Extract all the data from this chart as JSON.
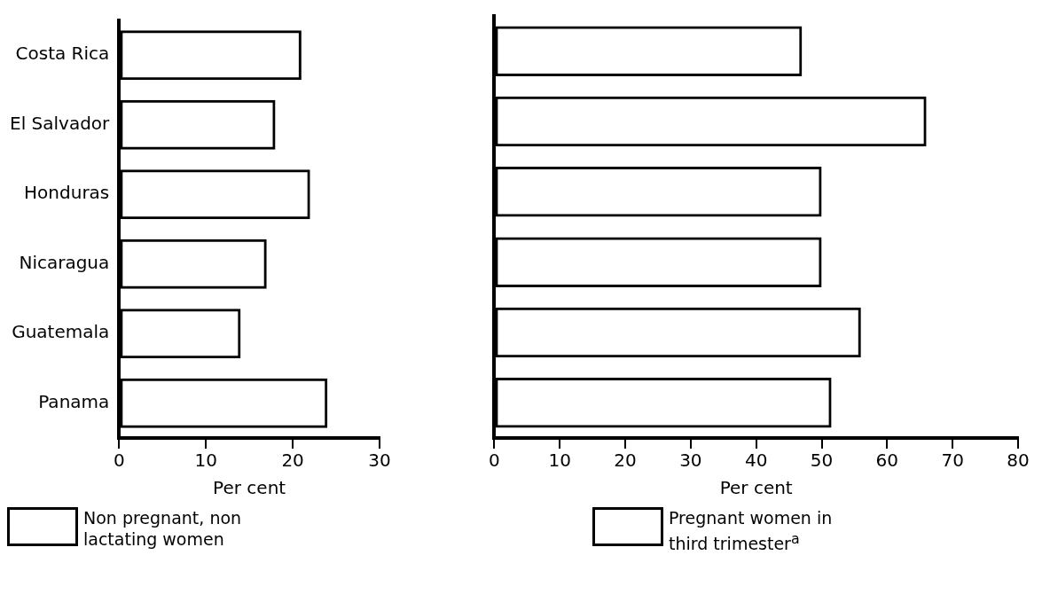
{
  "chart_data": [
    {
      "type": "bar",
      "orientation": "horizontal",
      "categories": [
        "Costa Rica",
        "El Salvador",
        "Honduras",
        "Nicaragua",
        "Guatemala",
        "Panama"
      ],
      "series": [
        {
          "name": "Non pregnant, non lactating women",
          "color": "#000000",
          "values": [
            21,
            18,
            22,
            17,
            14,
            24
          ]
        }
      ],
      "xlim": [
        0,
        30
      ],
      "xticks": [
        0,
        10,
        20,
        30
      ],
      "xlabel": "Per cent",
      "legend": "bottom"
    },
    {
      "type": "bar",
      "orientation": "horizontal",
      "categories": [
        null,
        null,
        null,
        null,
        null,
        null
      ],
      "series": [
        {
          "name": "Pregnant women in third trimester$^{a}$",
          "color": "#000000",
          "values": [
            47,
            66,
            50,
            50,
            56,
            51.5
          ]
        }
      ],
      "xlim": [
        0,
        80
      ],
      "xticks": [
        0,
        10,
        20,
        30,
        40,
        50,
        60,
        70,
        80
      ],
      "xlabel": "Per cent",
      "legend": "bottom",
      "tick_labels": "x"
    }
  ]
}
